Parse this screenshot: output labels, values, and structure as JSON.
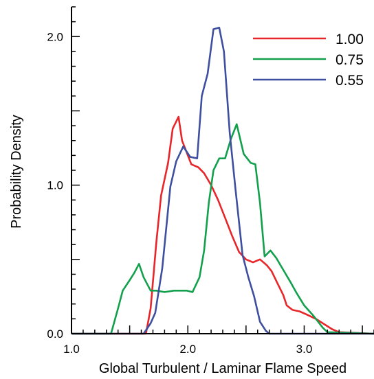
{
  "chart_data": {
    "type": "line",
    "xlabel": "Global Turbulent / Laminar Flame Speed",
    "ylabel": "Probability Density",
    "xlim": [
      1.0,
      3.6
    ],
    "ylim": [
      0.0,
      2.2
    ],
    "xticks": [
      "1.0",
      "2.0",
      "3.0"
    ],
    "xtick_values": [
      1.0,
      2.0,
      3.0
    ],
    "yticks": [
      "0.0",
      "1.0",
      "2.0"
    ],
    "ytick_values": [
      0.0,
      1.0,
      2.0
    ],
    "grid": false,
    "legend_position": "top-right",
    "series": [
      {
        "name": "1.00",
        "color": "#e8262a",
        "points": [
          [
            1.0,
            0
          ],
          [
            1.64,
            0
          ],
          [
            1.68,
            0.17
          ],
          [
            1.73,
            0.62
          ],
          [
            1.77,
            0.93
          ],
          [
            1.83,
            1.15
          ],
          [
            1.87,
            1.38
          ],
          [
            1.92,
            1.46
          ],
          [
            1.95,
            1.3
          ],
          [
            2.03,
            1.14
          ],
          [
            2.09,
            1.12
          ],
          [
            2.14,
            1.08
          ],
          [
            2.2,
            1.0
          ],
          [
            2.26,
            0.9
          ],
          [
            2.32,
            0.78
          ],
          [
            2.38,
            0.66
          ],
          [
            2.44,
            0.55
          ],
          [
            2.5,
            0.5
          ],
          [
            2.56,
            0.48
          ],
          [
            2.62,
            0.5
          ],
          [
            2.68,
            0.46
          ],
          [
            2.72,
            0.42
          ],
          [
            2.77,
            0.34
          ],
          [
            2.82,
            0.26
          ],
          [
            2.85,
            0.19
          ],
          [
            2.9,
            0.16
          ],
          [
            2.96,
            0.15
          ],
          [
            3.02,
            0.13
          ],
          [
            3.1,
            0.1
          ],
          [
            3.18,
            0.06
          ],
          [
            3.24,
            0.03
          ],
          [
            3.3,
            0.01
          ],
          [
            3.6,
            0
          ]
        ]
      },
      {
        "name": "0.75",
        "color": "#13a04c",
        "points": [
          [
            1.0,
            0
          ],
          [
            1.34,
            0
          ],
          [
            1.4,
            0.17
          ],
          [
            1.44,
            0.29
          ],
          [
            1.5,
            0.36
          ],
          [
            1.54,
            0.41
          ],
          [
            1.58,
            0.47
          ],
          [
            1.62,
            0.38
          ],
          [
            1.68,
            0.29
          ],
          [
            1.73,
            0.29
          ],
          [
            1.8,
            0.28
          ],
          [
            1.88,
            0.29
          ],
          [
            1.93,
            0.29
          ],
          [
            1.99,
            0.29
          ],
          [
            2.04,
            0.28
          ],
          [
            2.1,
            0.38
          ],
          [
            2.14,
            0.56
          ],
          [
            2.18,
            0.88
          ],
          [
            2.22,
            1.1
          ],
          [
            2.27,
            1.18
          ],
          [
            2.32,
            1.18
          ],
          [
            2.37,
            1.31
          ],
          [
            2.42,
            1.41
          ],
          [
            2.48,
            1.21
          ],
          [
            2.54,
            1.15
          ],
          [
            2.58,
            1.14
          ],
          [
            2.62,
            0.88
          ],
          [
            2.66,
            0.52
          ],
          [
            2.71,
            0.56
          ],
          [
            2.76,
            0.51
          ],
          [
            2.82,
            0.43
          ],
          [
            2.88,
            0.35
          ],
          [
            2.93,
            0.28
          ],
          [
            3.0,
            0.19
          ],
          [
            3.08,
            0.12
          ],
          [
            3.16,
            0.04
          ],
          [
            3.2,
            0.01
          ],
          [
            3.6,
            0
          ]
        ]
      },
      {
        "name": "0.55",
        "color": "#3e4fa0",
        "points": [
          [
            1.0,
            0
          ],
          [
            1.62,
            0
          ],
          [
            1.68,
            0.07
          ],
          [
            1.72,
            0.14
          ],
          [
            1.78,
            0.44
          ],
          [
            1.85,
            0.99
          ],
          [
            1.9,
            1.16
          ],
          [
            1.96,
            1.26
          ],
          [
            2.02,
            1.19
          ],
          [
            2.08,
            1.18
          ],
          [
            2.12,
            1.6
          ],
          [
            2.17,
            1.75
          ],
          [
            2.22,
            2.05
          ],
          [
            2.27,
            2.06
          ],
          [
            2.31,
            1.9
          ],
          [
            2.36,
            1.35
          ],
          [
            2.41,
            0.97
          ],
          [
            2.47,
            0.53
          ],
          [
            2.52,
            0.38
          ],
          [
            2.57,
            0.25
          ],
          [
            2.62,
            0.08
          ],
          [
            2.67,
            0.02
          ],
          [
            2.7,
            0
          ],
          [
            3.6,
            0
          ]
        ]
      }
    ]
  }
}
